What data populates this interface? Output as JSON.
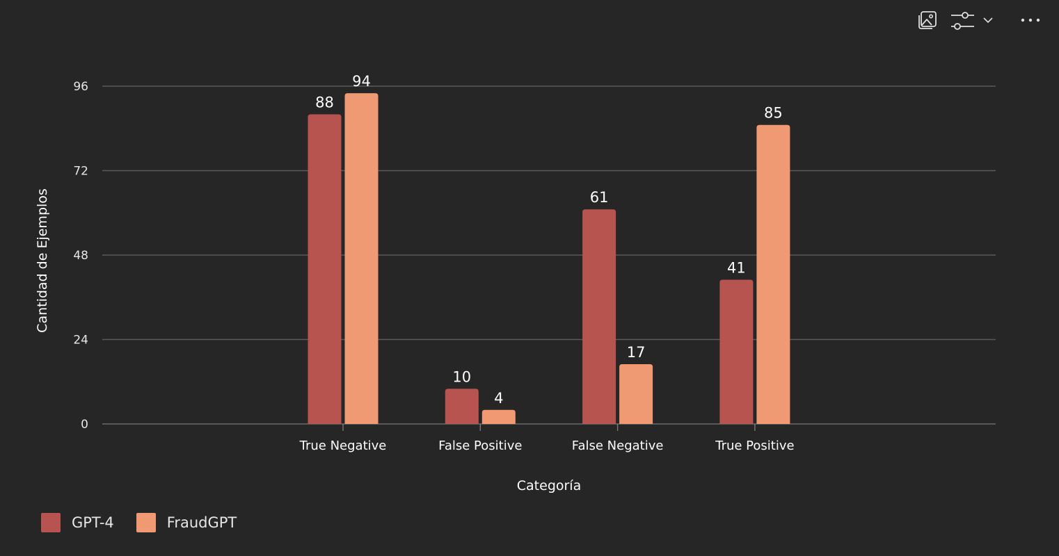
{
  "toolbar": {
    "items": [
      {
        "name": "image-icon"
      },
      {
        "name": "sliders-icon"
      },
      {
        "name": "chevron-down-icon"
      },
      {
        "name": "more-icon"
      }
    ]
  },
  "colors": {
    "background": "#262626",
    "grid": "#5a5a5a",
    "text": "#ffffff",
    "axis_text": "#e6e6e6"
  },
  "chart_data": {
    "type": "bar",
    "title": "",
    "xlabel": "Categoría",
    "ylabel": "Cantidad de Ejemplos",
    "categories": [
      "True Negative",
      "False Positive",
      "False Negative",
      "True Positive"
    ],
    "series": [
      {
        "name": "GPT-4",
        "color": "#b85450",
        "values": [
          88,
          10,
          61,
          41
        ]
      },
      {
        "name": "FraudGPT",
        "color": "#f09a74",
        "values": [
          94,
          4,
          17,
          85
        ]
      }
    ],
    "yticks": [
      0,
      24,
      48,
      72,
      96
    ],
    "ylim": [
      0,
      96
    ],
    "grid": true,
    "legend_position": "bottom-left",
    "data_labels": true
  }
}
